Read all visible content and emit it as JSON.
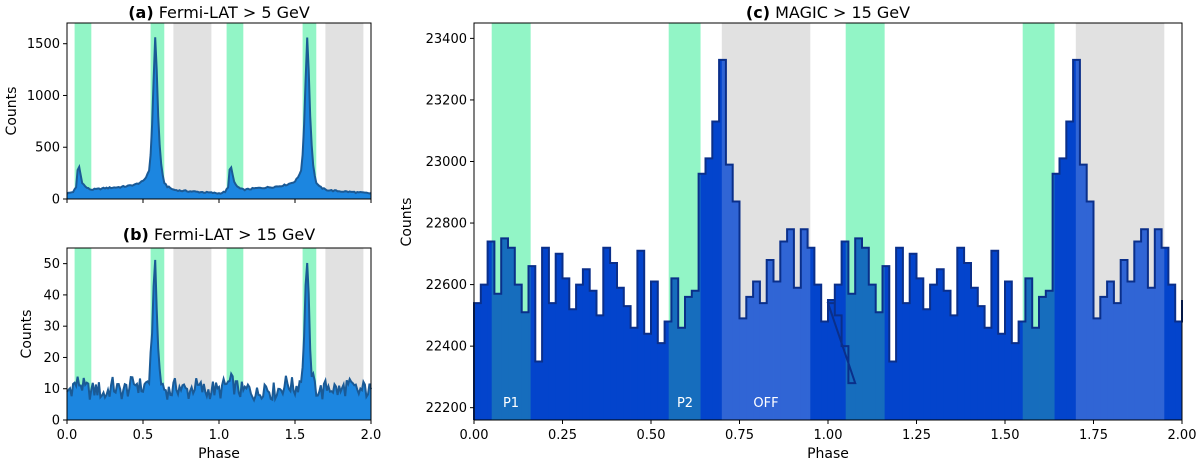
{
  "chart_data": [
    {
      "id": "a",
      "type": "area",
      "title_bold": "(a)",
      "title_rest": "Fermi-LAT > 5 GeV",
      "xlabel": "",
      "ylabel": "Counts",
      "xlim": [
        0,
        2
      ],
      "ylim": [
        0,
        1700
      ],
      "xticks": [
        0.0,
        0.5,
        1.0,
        1.5,
        2.0
      ],
      "xtick_labels": [
        "",
        "",
        "",
        "",
        ""
      ],
      "yticks": [
        0,
        500,
        1000,
        1500
      ],
      "ytick_labels": [
        "0",
        "500",
        "1000",
        "1500"
      ],
      "phase_regions": [
        {
          "name": "P1",
          "ranges": [
            [
              0.05,
              0.16
            ],
            [
              1.05,
              1.16
            ]
          ],
          "color": "#92f5c6"
        },
        {
          "name": "P2",
          "ranges": [
            [
              0.55,
              0.64
            ],
            [
              1.55,
              1.64
            ]
          ],
          "color": "#92f5c6"
        },
        {
          "name": "OFF",
          "ranges": [
            [
              0.7,
              0.95
            ],
            [
              1.7,
              1.95
            ]
          ],
          "color": "#e1e1e1"
        }
      ],
      "profile_phase": [
        0.0,
        0.02,
        0.04,
        0.06,
        0.07,
        0.08,
        0.09,
        0.1,
        0.12,
        0.14,
        0.16,
        0.2,
        0.25,
        0.3,
        0.35,
        0.4,
        0.45,
        0.5,
        0.52,
        0.54,
        0.55,
        0.56,
        0.57,
        0.58,
        0.59,
        0.6,
        0.61,
        0.62,
        0.63,
        0.64,
        0.66,
        0.7,
        0.75,
        0.8,
        0.85,
        0.9,
        0.95,
        0.99,
        1.0
      ],
      "profile_counts": [
        55,
        60,
        70,
        110,
        280,
        310,
        230,
        160,
        120,
        100,
        90,
        95,
        105,
        110,
        115,
        125,
        140,
        170,
        210,
        280,
        420,
        720,
        1150,
        1560,
        1250,
        800,
        520,
        330,
        220,
        160,
        120,
        90,
        80,
        75,
        70,
        65,
        60,
        55,
        55
      ],
      "grid": false
    },
    {
      "id": "b",
      "type": "area",
      "title_bold": "(b)",
      "title_rest": "Fermi-LAT > 15 GeV",
      "xlabel": "Phase",
      "ylabel": "Counts",
      "xlim": [
        0,
        2
      ],
      "ylim": [
        0,
        55
      ],
      "xticks": [
        0.0,
        0.5,
        1.0,
        1.5,
        2.0
      ],
      "xtick_labels": [
        "0.0",
        "0.5",
        "1.0",
        "1.5",
        "2.0"
      ],
      "yticks": [
        0,
        10,
        20,
        30,
        40,
        50
      ],
      "ytick_labels": [
        "0",
        "10",
        "20",
        "30",
        "40",
        "50"
      ],
      "profile_phase": [
        0.0,
        0.04,
        0.08,
        0.12,
        0.16,
        0.2,
        0.25,
        0.3,
        0.35,
        0.4,
        0.45,
        0.5,
        0.54,
        0.56,
        0.57,
        0.58,
        0.59,
        0.6,
        0.62,
        0.64,
        0.68,
        0.72,
        0.76,
        0.8,
        0.84,
        0.88,
        0.92,
        0.96,
        1.0
      ],
      "profile_counts": [
        9,
        11,
        12,
        10,
        9,
        10,
        8,
        11,
        9,
        10,
        12,
        10,
        13,
        25,
        45,
        50,
        38,
        20,
        12,
        10,
        9,
        11,
        10,
        9,
        11,
        10,
        9,
        10,
        9
      ],
      "grid": false
    },
    {
      "id": "c",
      "type": "area",
      "title_bold": "(c)",
      "title_rest": "MAGIC > 15 GeV",
      "xlabel": "Phase",
      "ylabel": "Counts",
      "xlim": [
        0,
        2
      ],
      "ylim": [
        22160,
        23450
      ],
      "xticks": [
        0.0,
        0.25,
        0.5,
        0.75,
        1.0,
        1.25,
        1.5,
        1.75,
        2.0
      ],
      "xtick_labels": [
        "0.00",
        "0.25",
        "0.50",
        "0.75",
        "1.00",
        "1.25",
        "1.50",
        "1.75",
        "2.00"
      ],
      "yticks": [
        22200,
        22400,
        22600,
        22800,
        23000,
        23200,
        23400
      ],
      "ytick_labels": [
        "22200",
        "22400",
        "22600",
        "22800",
        "23000",
        "23200",
        "23400"
      ],
      "region_labels": [
        "P1",
        "P2",
        "OFF"
      ],
      "bin_width": 0.01923,
      "bin_counts": [
        22540,
        22600,
        22740,
        22570,
        22750,
        22720,
        22600,
        22510,
        22660,
        22350,
        22720,
        22540,
        22700,
        22620,
        22520,
        22600,
        22650,
        22580,
        22500,
        22720,
        22670,
        22590,
        22530,
        22460,
        22710,
        22440,
        22610,
        22410,
        22480,
        22620,
        22460,
        22560,
        22580,
        22960,
        23010,
        23130,
        23330,
        22990,
        22870,
        22490,
        22560,
        22610,
        22540,
        22680,
        22610,
        22740,
        22780,
        22590,
        22780,
        22720,
        22600,
        22480,
        22550,
        22500,
        22400,
        22280
      ],
      "grid": false
    }
  ]
}
